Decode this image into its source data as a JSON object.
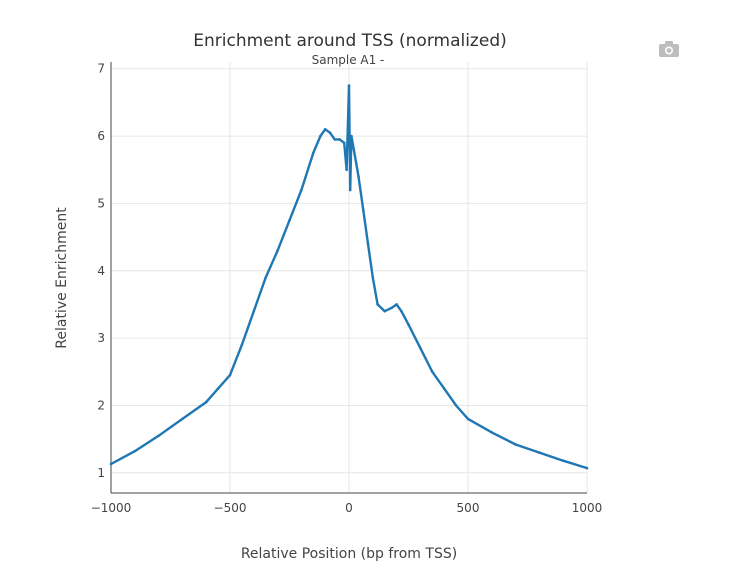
{
  "chart_data": {
    "type": "line",
    "title": "Enrichment around TSS (normalized)",
    "subtitle": "Sample A1 -",
    "xlabel": "Relative Position (bp from TSS)",
    "ylabel": "Relative Enrichment",
    "xlim": [
      -1000,
      1000
    ],
    "ylim": [
      0.7,
      7.1
    ],
    "xticks": [
      -1000,
      -500,
      0,
      500,
      1000
    ],
    "xtick_labels": [
      "−1000",
      "−500",
      "0",
      "500",
      "1000"
    ],
    "yticks": [
      1,
      2,
      3,
      4,
      5,
      6,
      7
    ],
    "ytick_labels": [
      "1",
      "2",
      "3",
      "4",
      "5",
      "6",
      "7"
    ],
    "grid": true,
    "series": [
      {
        "color": "#1f77b4",
        "x": [
          -1000,
          -900,
          -800,
          -700,
          -600,
          -550,
          -500,
          -450,
          -400,
          -350,
          -300,
          -250,
          -200,
          -150,
          -120,
          -100,
          -80,
          -60,
          -40,
          -20,
          -10,
          0,
          5,
          10,
          20,
          40,
          60,
          80,
          100,
          120,
          150,
          180,
          200,
          220,
          250,
          300,
          350,
          400,
          450,
          500,
          600,
          700,
          800,
          900,
          1000
        ],
        "y": [
          1.13,
          1.32,
          1.55,
          1.8,
          2.05,
          2.25,
          2.45,
          2.9,
          3.4,
          3.9,
          4.3,
          4.75,
          5.2,
          5.75,
          6.0,
          6.1,
          6.05,
          5.95,
          5.95,
          5.9,
          5.5,
          6.75,
          5.2,
          6.0,
          5.8,
          5.4,
          4.9,
          4.4,
          3.9,
          3.5,
          3.4,
          3.45,
          3.5,
          3.4,
          3.2,
          2.85,
          2.5,
          2.25,
          2.0,
          1.8,
          1.6,
          1.42,
          1.3,
          1.18,
          1.07
        ]
      }
    ]
  },
  "modebar": {
    "icon": "camera-icon"
  }
}
